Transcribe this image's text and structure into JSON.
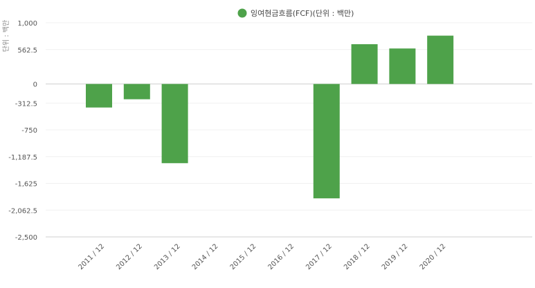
{
  "chart_data": {
    "type": "bar",
    "categories": [
      "2011 / 12",
      "2012 / 12",
      "2013 / 12",
      "2014 / 12",
      "2015 / 12",
      "2016 / 12",
      "2017 / 12",
      "2018 / 12",
      "2019 / 12",
      "2020 / 12"
    ],
    "series": [
      {
        "name": "잉여현금흐름(FCF)(단위 : 백만)",
        "color": "#4ea24a",
        "values": [
          -385,
          -250,
          -1295,
          null,
          null,
          null,
          -1870,
          650,
          580,
          790
        ]
      }
    ],
    "y_ticks": [
      "1,000",
      "562.5",
      "0",
      "-312.5",
      "-750",
      "-1,187.5",
      "-1,625",
      "-2,062.5",
      "-2,500"
    ],
    "ylabel": "단위 : 백만",
    "ylim": [
      -2500,
      1000
    ],
    "legend_position": "top-center",
    "grid": true
  }
}
